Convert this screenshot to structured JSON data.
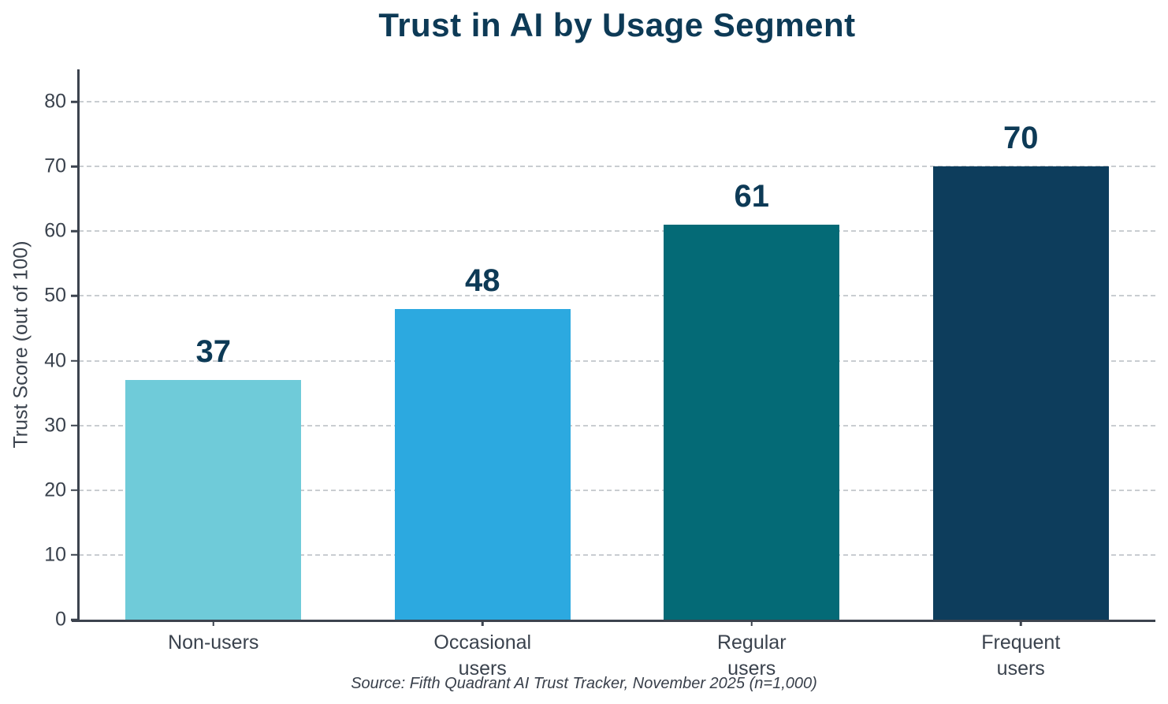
{
  "chart_data": {
    "type": "bar",
    "title": "Trust in AI by Usage Segment",
    "ylabel": "Trust Score (out of 100)",
    "xlabel": "",
    "categories": [
      "Non-users",
      "Occasional\nusers",
      "Regular\nusers",
      "Frequent\nusers"
    ],
    "values": [
      37,
      48,
      61,
      70
    ],
    "value_labels": [
      "37",
      "48",
      "61",
      "70"
    ],
    "bar_colors": [
      "#6fcbd9",
      "#2ca9e0",
      "#046a76",
      "#0d3d5c"
    ],
    "yticks": [
      0,
      10,
      20,
      30,
      40,
      50,
      60,
      70,
      80
    ],
    "ylim": [
      0,
      85
    ],
    "grid": {
      "horizontal": true,
      "style": "dashed",
      "color": "#c9cdd1"
    },
    "legend": "none",
    "colors": {
      "title": "#0d3a56",
      "value_label": "#0d3a56",
      "axis": "#3c434e",
      "tick_label": "#3a424d",
      "source": "#39404b",
      "background": "#ffffff"
    },
    "source": "Source: Fifth Quadrant AI Trust Tracker, November 2025 (n=1,000)"
  }
}
